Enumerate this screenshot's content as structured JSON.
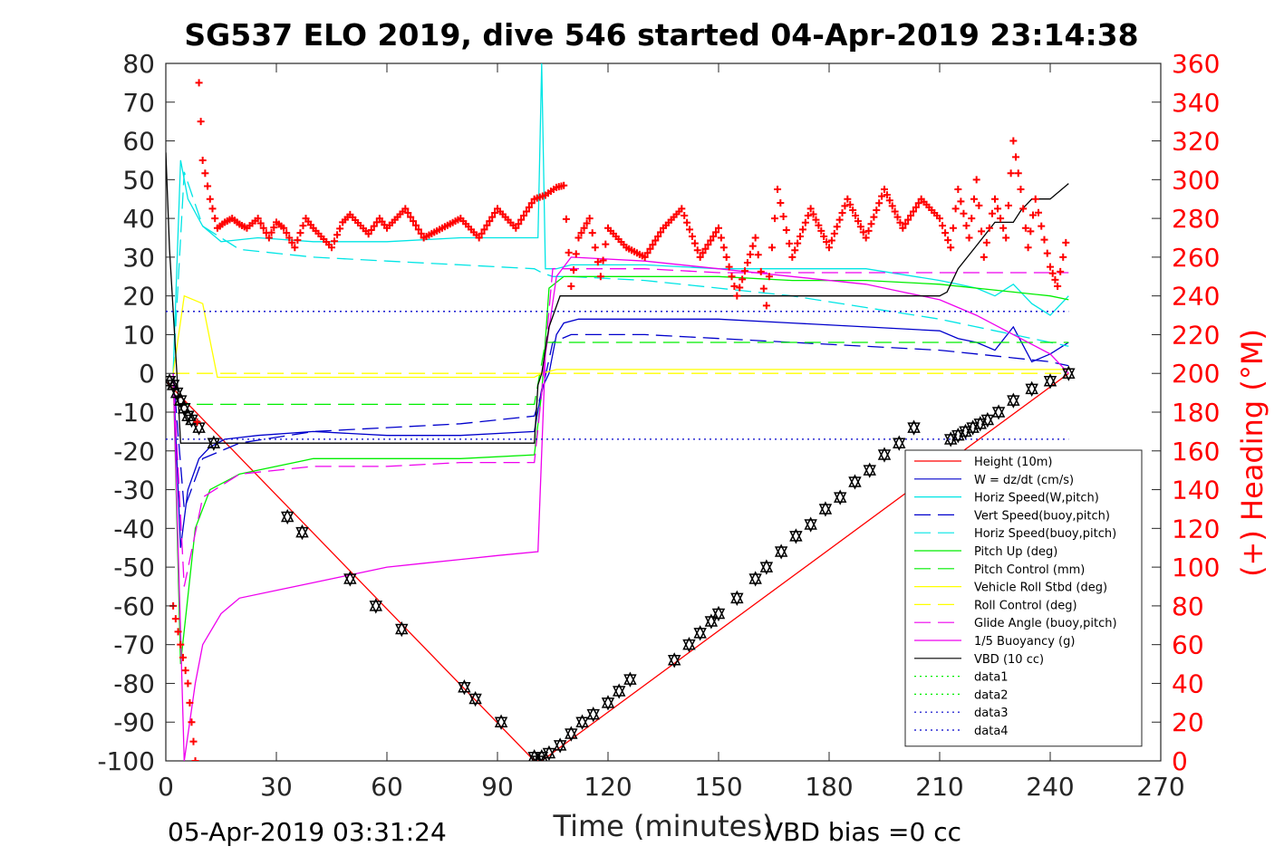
{
  "chart_data": {
    "type": "line",
    "title": "SG537 ELO 2019, dive 546 started 04-Apr-2019 23:14:38",
    "xlabel": "Time (minutes)",
    "ylabel_right": "(+) Heading (°M)",
    "xlim": [
      0,
      270
    ],
    "ylim": [
      -100,
      80
    ],
    "ylim_right": [
      0,
      360
    ],
    "x_ticks": [
      0,
      30,
      60,
      90,
      120,
      150,
      180,
      210,
      240,
      270
    ],
    "y_ticks": [
      80,
      70,
      60,
      50,
      40,
      30,
      20,
      10,
      0,
      -10,
      -20,
      -30,
      -40,
      -50,
      -60,
      -70,
      -80,
      -90,
      -100
    ],
    "y_ticks_right": [
      360,
      340,
      320,
      300,
      280,
      260,
      240,
      220,
      200,
      180,
      160,
      140,
      120,
      100,
      80,
      60,
      40,
      20,
      0
    ],
    "footer_left": "05-Apr-2019 03:31:24",
    "footer_right": "VBD bias =0 cc",
    "grid": false,
    "legend_position": "lower-right",
    "colors": {
      "red": "#ff0000",
      "blue": "#0000cc",
      "cyan": "#00e5e5",
      "green": "#00ee00",
      "yellow": "#ffff00",
      "magenta": "#ee00ee",
      "black": "#000000",
      "heading": "#ff0000"
    },
    "series": [
      {
        "name": "Height (10m)",
        "color": "red",
        "style": "solid",
        "x": [
          0,
          100,
          102,
          245
        ],
        "y": [
          -2,
          -100,
          -100,
          0
        ]
      },
      {
        "name": "W = dz/dt (cm/s)",
        "color": "blue",
        "style": "solid",
        "x": [
          2,
          4,
          6,
          9,
          12,
          16,
          25,
          40,
          60,
          80,
          100,
          102,
          104,
          106,
          108,
          112,
          130,
          150,
          170,
          190,
          210,
          215,
          220,
          225,
          230,
          235,
          240,
          245
        ],
        "y": [
          0,
          -45,
          -30,
          -22,
          -19,
          -17,
          -16,
          -15,
          -16,
          -16,
          -15,
          -4,
          0,
          10,
          13,
          14,
          14,
          14,
          13,
          12,
          11,
          9,
          8,
          6,
          12,
          3,
          5,
          8
        ]
      },
      {
        "name": "Horiz Speed(W,pitch)",
        "color": "cyan",
        "style": "solid",
        "x": [
          2,
          4,
          6,
          10,
          15,
          25,
          40,
          60,
          80,
          101,
          102,
          103,
          106,
          110,
          130,
          150,
          170,
          190,
          210,
          215,
          220,
          225,
          230,
          235,
          240,
          245
        ],
        "y": [
          0,
          55,
          45,
          38,
          34,
          35,
          34,
          34,
          35,
          35,
          80,
          27,
          27,
          28,
          28,
          27,
          27,
          27,
          24,
          23,
          22,
          20,
          23,
          18,
          15,
          20
        ]
      },
      {
        "name": "Vert Speed(buoy,pitch)",
        "color": "blue",
        "style": "dashed",
        "x": [
          2,
          5,
          10,
          20,
          40,
          60,
          80,
          100,
          102,
          105,
          110,
          130,
          150,
          170,
          190,
          210,
          220,
          230,
          240,
          245
        ],
        "y": [
          0,
          -35,
          -22,
          -18,
          -15,
          -14,
          -13,
          -11,
          -5,
          8,
          10,
          10,
          9,
          8,
          7,
          6,
          5,
          4,
          3,
          2
        ]
      },
      {
        "name": "Horiz Speed(buoy,pitch)",
        "color": "cyan",
        "style": "dashed",
        "x": [
          2,
          5,
          10,
          20,
          40,
          60,
          80,
          100,
          102,
          105,
          110,
          130,
          150,
          170,
          190,
          210,
          220,
          230,
          240,
          245
        ],
        "y": [
          0,
          52,
          38,
          32,
          30,
          29,
          28,
          27,
          26,
          25,
          25,
          24,
          22,
          20,
          17,
          14,
          12,
          10,
          8,
          7
        ]
      },
      {
        "name": "Pitch Up (deg)",
        "color": "green",
        "style": "solid",
        "x": [
          2,
          4,
          8,
          12,
          20,
          40,
          60,
          80,
          100,
          102,
          104,
          108,
          130,
          150,
          170,
          190,
          210,
          220,
          230,
          240,
          245
        ],
        "y": [
          0,
          -75,
          -40,
          -30,
          -26,
          -22,
          -22,
          -22,
          -21,
          -5,
          22,
          25,
          25,
          25,
          24,
          24,
          23,
          22,
          21,
          20,
          19
        ]
      },
      {
        "name": "Pitch Control (mm)",
        "color": "green",
        "style": "dashed",
        "x": [
          2,
          12,
          100,
          103,
          110,
          245
        ],
        "y": [
          -8,
          -8,
          -8,
          8,
          8,
          8
        ]
      },
      {
        "name": "Vehicle Roll Stbd (deg)",
        "color": "yellow",
        "style": "solid",
        "x": [
          2,
          5,
          10,
          14,
          30,
          40,
          60,
          80,
          100,
          102,
          106,
          130,
          150,
          170,
          190,
          210,
          220,
          230,
          240,
          245
        ],
        "y": [
          0,
          20,
          18,
          -1,
          -1,
          -1,
          -1,
          -1,
          -1,
          0,
          1,
          1,
          1,
          1,
          1,
          1,
          1,
          1,
          1,
          1
        ]
      },
      {
        "name": "Roll Control (deg)",
        "color": "yellow",
        "style": "dashed",
        "x": [
          2,
          12,
          100,
          103,
          106,
          245
        ],
        "y": [
          0,
          0,
          0,
          0,
          0,
          0
        ]
      },
      {
        "name": "Glide Angle (buoy,pitch)",
        "color": "magenta",
        "style": "dashed",
        "x": [
          2,
          5,
          10,
          20,
          40,
          60,
          80,
          100,
          102,
          105,
          110,
          130,
          150,
          170,
          190,
          210,
          220,
          230,
          240,
          245
        ],
        "y": [
          0,
          -55,
          -32,
          -26,
          -24,
          -24,
          -23,
          -23,
          -5,
          27,
          27,
          27,
          26,
          26,
          26,
          26,
          26,
          26,
          26,
          26
        ]
      },
      {
        "name": "1/5 Buoyancy (g)",
        "color": "magenta",
        "style": "solid",
        "x": [
          2,
          5,
          8,
          10,
          15,
          20,
          30,
          40,
          50,
          60,
          70,
          80,
          90,
          101,
          103,
          106,
          110,
          130,
          150,
          170,
          190,
          200,
          210,
          220,
          230,
          240,
          245
        ],
        "y": [
          0,
          -100,
          -80,
          -70,
          -62,
          -58,
          -56,
          -54,
          -52,
          -50,
          -49,
          -48,
          -47,
          -46,
          5,
          25,
          30,
          29,
          27,
          25,
          23,
          21,
          19,
          15,
          10,
          5,
          0
        ]
      },
      {
        "name": "VBD (10 cc)",
        "color": "black",
        "style": "solid",
        "x": [
          0,
          1,
          3,
          4,
          100,
          101,
          102,
          104,
          107,
          108,
          210,
          212,
          215,
          220,
          225,
          230,
          232,
          235,
          240,
          245
        ],
        "y": [
          57,
          32,
          0,
          -18,
          -18,
          -3,
          0,
          12,
          20,
          20,
          20,
          21,
          27,
          33,
          39,
          39,
          42,
          45,
          45,
          49
        ]
      },
      {
        "name": "data1",
        "color": "green",
        "style": "dotted",
        "x": [],
        "y": []
      },
      {
        "name": "data2",
        "color": "green",
        "style": "dotted",
        "x": [],
        "y": []
      },
      {
        "name": "data3",
        "color": "blue",
        "style": "dotted",
        "x": [
          0,
          245
        ],
        "y": [
          -17,
          -17
        ]
      },
      {
        "name": "data4",
        "color": "blue",
        "style": "dotted",
        "x": [
          0,
          245
        ],
        "y": [
          16,
          16
        ]
      }
    ],
    "heading": {
      "axis": "right",
      "marker": "+",
      "color": "heading",
      "x": [
        2,
        4,
        6,
        7,
        8,
        9,
        10,
        12,
        14,
        16,
        18,
        20,
        22,
        25,
        28,
        30,
        32,
        35,
        38,
        40,
        45,
        48,
        50,
        55,
        58,
        60,
        65,
        70,
        75,
        80,
        85,
        90,
        95,
        100,
        103,
        106,
        108,
        110,
        112,
        115,
        118,
        120,
        125,
        130,
        135,
        140,
        145,
        150,
        155,
        160,
        163,
        166,
        170,
        175,
        180,
        185,
        190,
        195,
        200,
        205,
        210,
        213,
        215,
        218,
        220,
        222,
        225,
        228,
        230,
        232,
        234,
        236,
        240,
        242,
        245
      ],
      "y": [
        80,
        60,
        40,
        20,
        0,
        350,
        310,
        290,
        275,
        278,
        280,
        277,
        275,
        280,
        270,
        278,
        275,
        265,
        280,
        275,
        265,
        278,
        282,
        272,
        280,
        275,
        285,
        270,
        275,
        280,
        270,
        285,
        275,
        290,
        292,
        296,
        297,
        245,
        270,
        280,
        250,
        275,
        265,
        260,
        275,
        285,
        260,
        275,
        240,
        270,
        235,
        295,
        260,
        285,
        265,
        290,
        270,
        295,
        275,
        290,
        280,
        265,
        295,
        270,
        300,
        260,
        290,
        270,
        320,
        295,
        265,
        290,
        255,
        245,
        275
      ]
    },
    "height_markers": {
      "marker": "triangle",
      "x": [
        1,
        2,
        3,
        4,
        5,
        6,
        7,
        9,
        13,
        33,
        37,
        50,
        57,
        64,
        81,
        84,
        91,
        100,
        101,
        102,
        104,
        107,
        110,
        113,
        116,
        120,
        123,
        126,
        138,
        142,
        145,
        148,
        150,
        155,
        160,
        163,
        167,
        171,
        175,
        179,
        183,
        187,
        191,
        195,
        199,
        203,
        213,
        215,
        217,
        219,
        221,
        223,
        226,
        230,
        235,
        240,
        245
      ],
      "y": [
        -2,
        -3,
        -5,
        -7,
        -9,
        -11,
        -12,
        -14,
        -18,
        -37,
        -41,
        -53,
        -60,
        -66,
        -81,
        -84,
        -90,
        -99,
        -100,
        -99,
        -98,
        -96,
        -93,
        -90,
        -88,
        -85,
        -82,
        -79,
        -74,
        -70,
        -67,
        -64,
        -62,
        -58,
        -53,
        -50,
        -46,
        -42,
        -39,
        -35,
        -32,
        -28,
        -25,
        -21,
        -18,
        -14,
        -17,
        -16,
        -15,
        -14,
        -13,
        -12,
        -10,
        -7,
        -4,
        -2,
        0
      ]
    }
  }
}
